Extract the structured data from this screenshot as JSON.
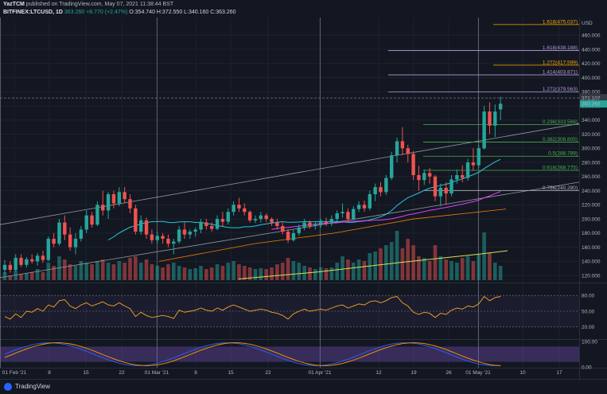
{
  "header": {
    "author": "YazTCM",
    "published_text": "published on TradingView.com, May 07, 2021 11:38:44 BST",
    "symbol": "BITFINEX:LTCUSD, 1D",
    "price": "363.260",
    "change": "+8.770 (+2.47%)",
    "ohlc": "O:354.740 H:372.550 L:340.160 C:363.260"
  },
  "price_axis": {
    "currency": "USD",
    "ticks": [
      "460.000",
      "440.000",
      "420.000",
      "400.000",
      "380.000",
      "360.000",
      "340.000",
      "320.000",
      "300.000",
      "280.000",
      "260.000",
      "240.000",
      "220.000",
      "200.000",
      "180.000",
      "160.000",
      "140.000",
      "120.000"
    ],
    "crosshair_label": "371.107",
    "last_price_label": "363.260"
  },
  "rsi_axis": {
    "ticks": [
      "80.00",
      "50.00",
      "20.00"
    ]
  },
  "stoch_axis": {
    "ticks": [
      "100.00",
      "0.00"
    ]
  },
  "time_axis": {
    "labels": [
      "01 Feb '21",
      "8",
      "15",
      "22",
      "01 Mar '21",
      "8",
      "15",
      "22",
      "01 Apr '21",
      "12",
      "19",
      "26",
      "01 May '21",
      "10",
      "17"
    ]
  },
  "fib_levels": [
    {
      "label": "1.618(475.037)",
      "color": "#f7a600"
    },
    {
      "label": "1.618(438.188)",
      "color": "#b39ddb"
    },
    {
      "label": "1.272(417.599)",
      "color": "#f7a600"
    },
    {
      "label": "1.414(403.871)",
      "color": "#b39ddb"
    },
    {
      "label": "1.272(379.563)",
      "color": "#b39ddb"
    },
    {
      "label": "0.236(333.566)",
      "color": "#4caf50"
    },
    {
      "label": "0.382(308.805)",
      "color": "#4caf50"
    },
    {
      "label": "0.5(288.789)",
      "color": "#4caf50"
    },
    {
      "label": "0.618(268.775)",
      "color": "#4caf50"
    },
    {
      "label": "0.786(240.280)",
      "color": "#b2b5be"
    }
  ],
  "colors": {
    "up": "#26a69a",
    "down": "#ef5350",
    "background": "#131722",
    "grid": "#1e222d"
  },
  "chart_data": {
    "type": "candlestick",
    "ylim": [
      110,
      485
    ],
    "candles": [
      [
        128,
        142,
        122,
        135
      ],
      [
        135,
        140,
        124,
        128
      ],
      [
        128,
        150,
        126,
        145
      ],
      [
        145,
        150,
        132,
        135
      ],
      [
        135,
        146,
        131,
        143
      ],
      [
        143,
        150,
        137,
        140
      ],
      [
        140,
        152,
        134,
        148
      ],
      [
        148,
        155,
        138,
        142
      ],
      [
        142,
        175,
        140,
        172
      ],
      [
        172,
        180,
        160,
        165
      ],
      [
        165,
        200,
        162,
        195
      ],
      [
        195,
        205,
        170,
        178
      ],
      [
        178,
        188,
        155,
        160
      ],
      [
        160,
        180,
        150,
        172
      ],
      [
        172,
        190,
        168,
        185
      ],
      [
        185,
        212,
        180,
        205
      ],
      [
        205,
        210,
        188,
        192
      ],
      [
        192,
        225,
        190,
        220
      ],
      [
        220,
        240,
        205,
        212
      ],
      [
        212,
        238,
        200,
        235
      ],
      [
        235,
        240,
        215,
        222
      ],
      [
        222,
        245,
        218,
        238
      ],
      [
        238,
        245,
        222,
        228
      ],
      [
        228,
        235,
        208,
        215
      ],
      [
        215,
        220,
        178,
        182
      ],
      [
        182,
        205,
        178,
        198
      ],
      [
        198,
        202,
        172,
        178
      ],
      [
        178,
        185,
        165,
        170
      ],
      [
        170,
        182,
        165,
        176
      ],
      [
        176,
        180,
        165,
        172
      ],
      [
        172,
        178,
        160,
        165
      ],
      [
        165,
        172,
        150,
        168
      ],
      [
        168,
        190,
        165,
        185
      ],
      [
        185,
        195,
        172,
        178
      ],
      [
        178,
        185,
        172,
        182
      ],
      [
        182,
        188,
        175,
        185
      ],
      [
        185,
        200,
        180,
        195
      ],
      [
        195,
        200,
        185,
        190
      ],
      [
        190,
        195,
        182,
        186
      ],
      [
        186,
        205,
        184,
        200
      ],
      [
        200,
        210,
        190,
        196
      ],
      [
        196,
        215,
        192,
        210
      ],
      [
        210,
        225,
        205,
        220
      ],
      [
        220,
        230,
        210,
        215
      ],
      [
        215,
        222,
        205,
        210
      ],
      [
        210,
        212,
        195,
        198
      ],
      [
        198,
        205,
        194,
        200
      ],
      [
        200,
        210,
        195,
        205
      ],
      [
        205,
        208,
        196,
        200
      ],
      [
        200,
        202,
        190,
        195
      ],
      [
        195,
        200,
        185,
        190
      ],
      [
        190,
        195,
        178,
        182
      ],
      [
        182,
        186,
        166,
        170
      ],
      [
        170,
        185,
        168,
        180
      ],
      [
        180,
        192,
        176,
        188
      ],
      [
        188,
        200,
        184,
        195
      ],
      [
        195,
        198,
        186,
        190
      ],
      [
        190,
        196,
        185,
        192
      ],
      [
        192,
        200,
        188,
        196
      ],
      [
        196,
        202,
        190,
        194
      ],
      [
        194,
        205,
        190,
        200
      ],
      [
        200,
        212,
        196,
        208
      ],
      [
        208,
        222,
        202,
        210
      ],
      [
        210,
        215,
        195,
        200
      ],
      [
        200,
        218,
        198,
        214
      ],
      [
        214,
        225,
        210,
        220
      ],
      [
        220,
        226,
        210,
        215
      ],
      [
        215,
        240,
        212,
        235
      ],
      [
        235,
        250,
        225,
        245
      ],
      [
        245,
        252,
        232,
        238
      ],
      [
        238,
        262,
        234,
        258
      ],
      [
        258,
        295,
        255,
        290
      ],
      [
        290,
        315,
        280,
        310
      ],
      [
        310,
        330,
        290,
        300
      ],
      [
        300,
        305,
        280,
        292
      ],
      [
        292,
        296,
        255,
        262
      ],
      [
        262,
        275,
        240,
        255
      ],
      [
        255,
        270,
        248,
        265
      ],
      [
        265,
        272,
        250,
        260
      ],
      [
        260,
        262,
        225,
        232
      ],
      [
        232,
        250,
        218,
        244
      ],
      [
        244,
        252,
        220,
        236
      ],
      [
        236,
        262,
        232,
        256
      ],
      [
        256,
        270,
        250,
        262
      ],
      [
        262,
        276,
        252,
        258
      ],
      [
        258,
        285,
        254,
        280
      ],
      [
        280,
        300,
        268,
        276
      ],
      [
        276,
        305,
        272,
        300
      ],
      [
        300,
        360,
        298,
        352
      ],
      [
        352,
        365,
        320,
        332
      ],
      [
        332,
        362,
        316,
        352
      ],
      [
        355,
        373,
        340,
        363
      ]
    ]
  }
}
